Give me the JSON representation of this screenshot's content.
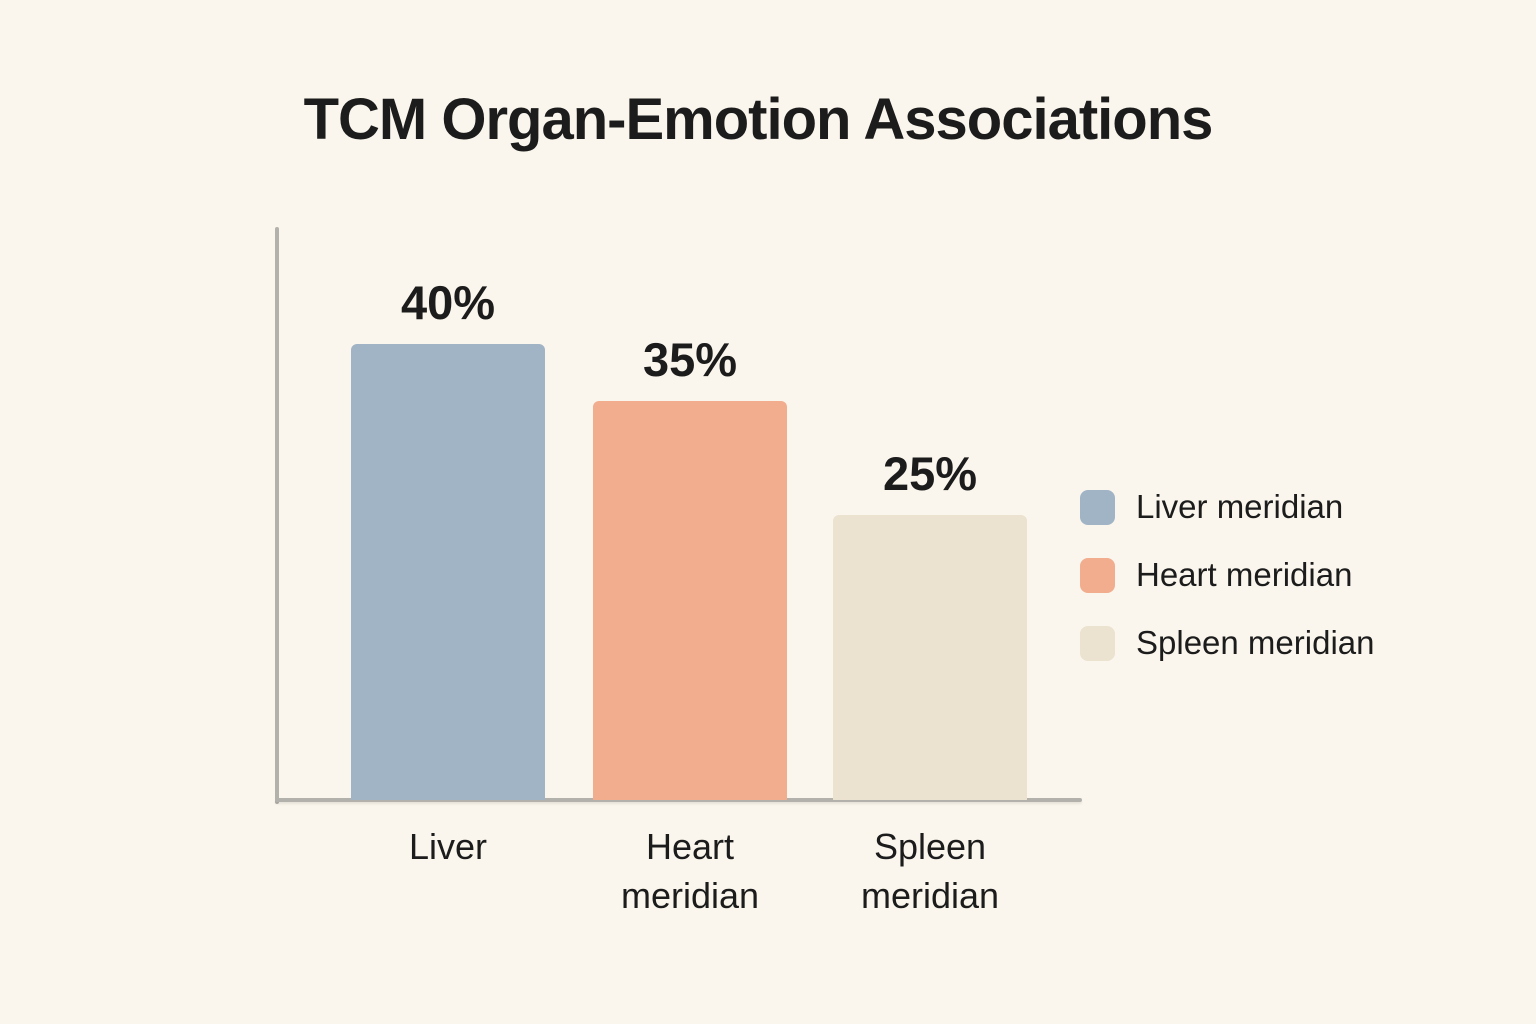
{
  "title": "TCM Organ-Emotion Associations",
  "chart_data": {
    "type": "bar",
    "categories": [
      "Liver",
      "Heart meridian",
      "Spleen meridian"
    ],
    "values": [
      40,
      35,
      25
    ],
    "value_labels": [
      "40%",
      "35%",
      "25%"
    ],
    "bar_colors": [
      "#a0b4c6",
      "#f1ad8e",
      "#ebe2cf"
    ],
    "title": "TCM Organ-Emotion Associations",
    "xlabel": "",
    "ylabel": "",
    "ylim": [
      0,
      50
    ],
    "grid": false,
    "legend_position": "right",
    "legend": [
      {
        "label": "Liver meridian",
        "color": "#a0b4c6"
      },
      {
        "label": "Heart meridian",
        "color": "#f1ad8e"
      },
      {
        "label": "Spleen meridian",
        "color": "#ebe2cf"
      }
    ]
  },
  "colors": {
    "background": "#faf6ed",
    "axis": "#b3b1ac",
    "text": "#1c1c1c"
  }
}
